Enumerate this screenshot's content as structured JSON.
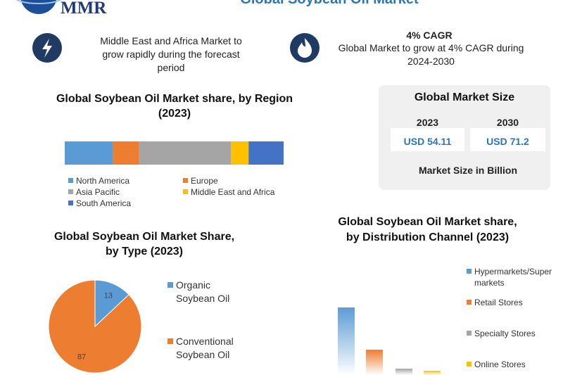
{
  "header": {
    "logo": "MMR",
    "title": "Global Soybean Oil Market"
  },
  "highlights": [
    {
      "text": "Middle East and Africa Market to grow rapidly during the forecast period"
    },
    {
      "title": "4% CAGR",
      "text": "Global Market to grow at 4% CAGR during 2024-2030"
    }
  ],
  "market_size": {
    "title": "Global Market Size",
    "columns": [
      {
        "year": "2023",
        "value": "USD 54.11"
      },
      {
        "year": "2030",
        "value": "USD 71.2"
      }
    ],
    "note": "Market Size in Billion"
  },
  "chart_data": [
    {
      "type": "stacked-bar",
      "title": "Global Soybean Oil Market share, by Region (2023)",
      "series": [
        {
          "name": "North America",
          "color": "#5b9bd5",
          "values": [
            22
          ]
        },
        {
          "name": "Europe",
          "color": "#ed7d31",
          "values": [
            12
          ]
        },
        {
          "name": "Asia Pacific",
          "color": "#a5a5a5",
          "values": [
            42
          ]
        },
        {
          "name": "Middle East and Africa",
          "color": "#ffc000",
          "values": [
            8
          ]
        },
        {
          "name": "South America",
          "color": "#4472c4",
          "values": [
            16
          ]
        }
      ]
    },
    {
      "type": "pie",
      "title": "Global Soybean Oil Market Share, by Type (2023)",
      "categories": [
        "Organic Soybean Oil",
        "Conventional Soybean Oil"
      ],
      "values": [
        13,
        87
      ],
      "colors": [
        "#5b9bd5",
        "#ed7d31"
      ]
    },
    {
      "type": "bar",
      "title": "Global Soybean Oil Market share, by Distribution Channel (2023)",
      "categories": [
        "Hypermarkets/Supermarkets",
        "Retail Stores",
        "Specialty Stores",
        "Online Stores"
      ],
      "values": [
        48,
        18,
        4.5,
        3
      ],
      "colors": [
        "#5b9bd5",
        "#ed7d31",
        "#a5a5a5",
        "#ffc000"
      ]
    }
  ]
}
